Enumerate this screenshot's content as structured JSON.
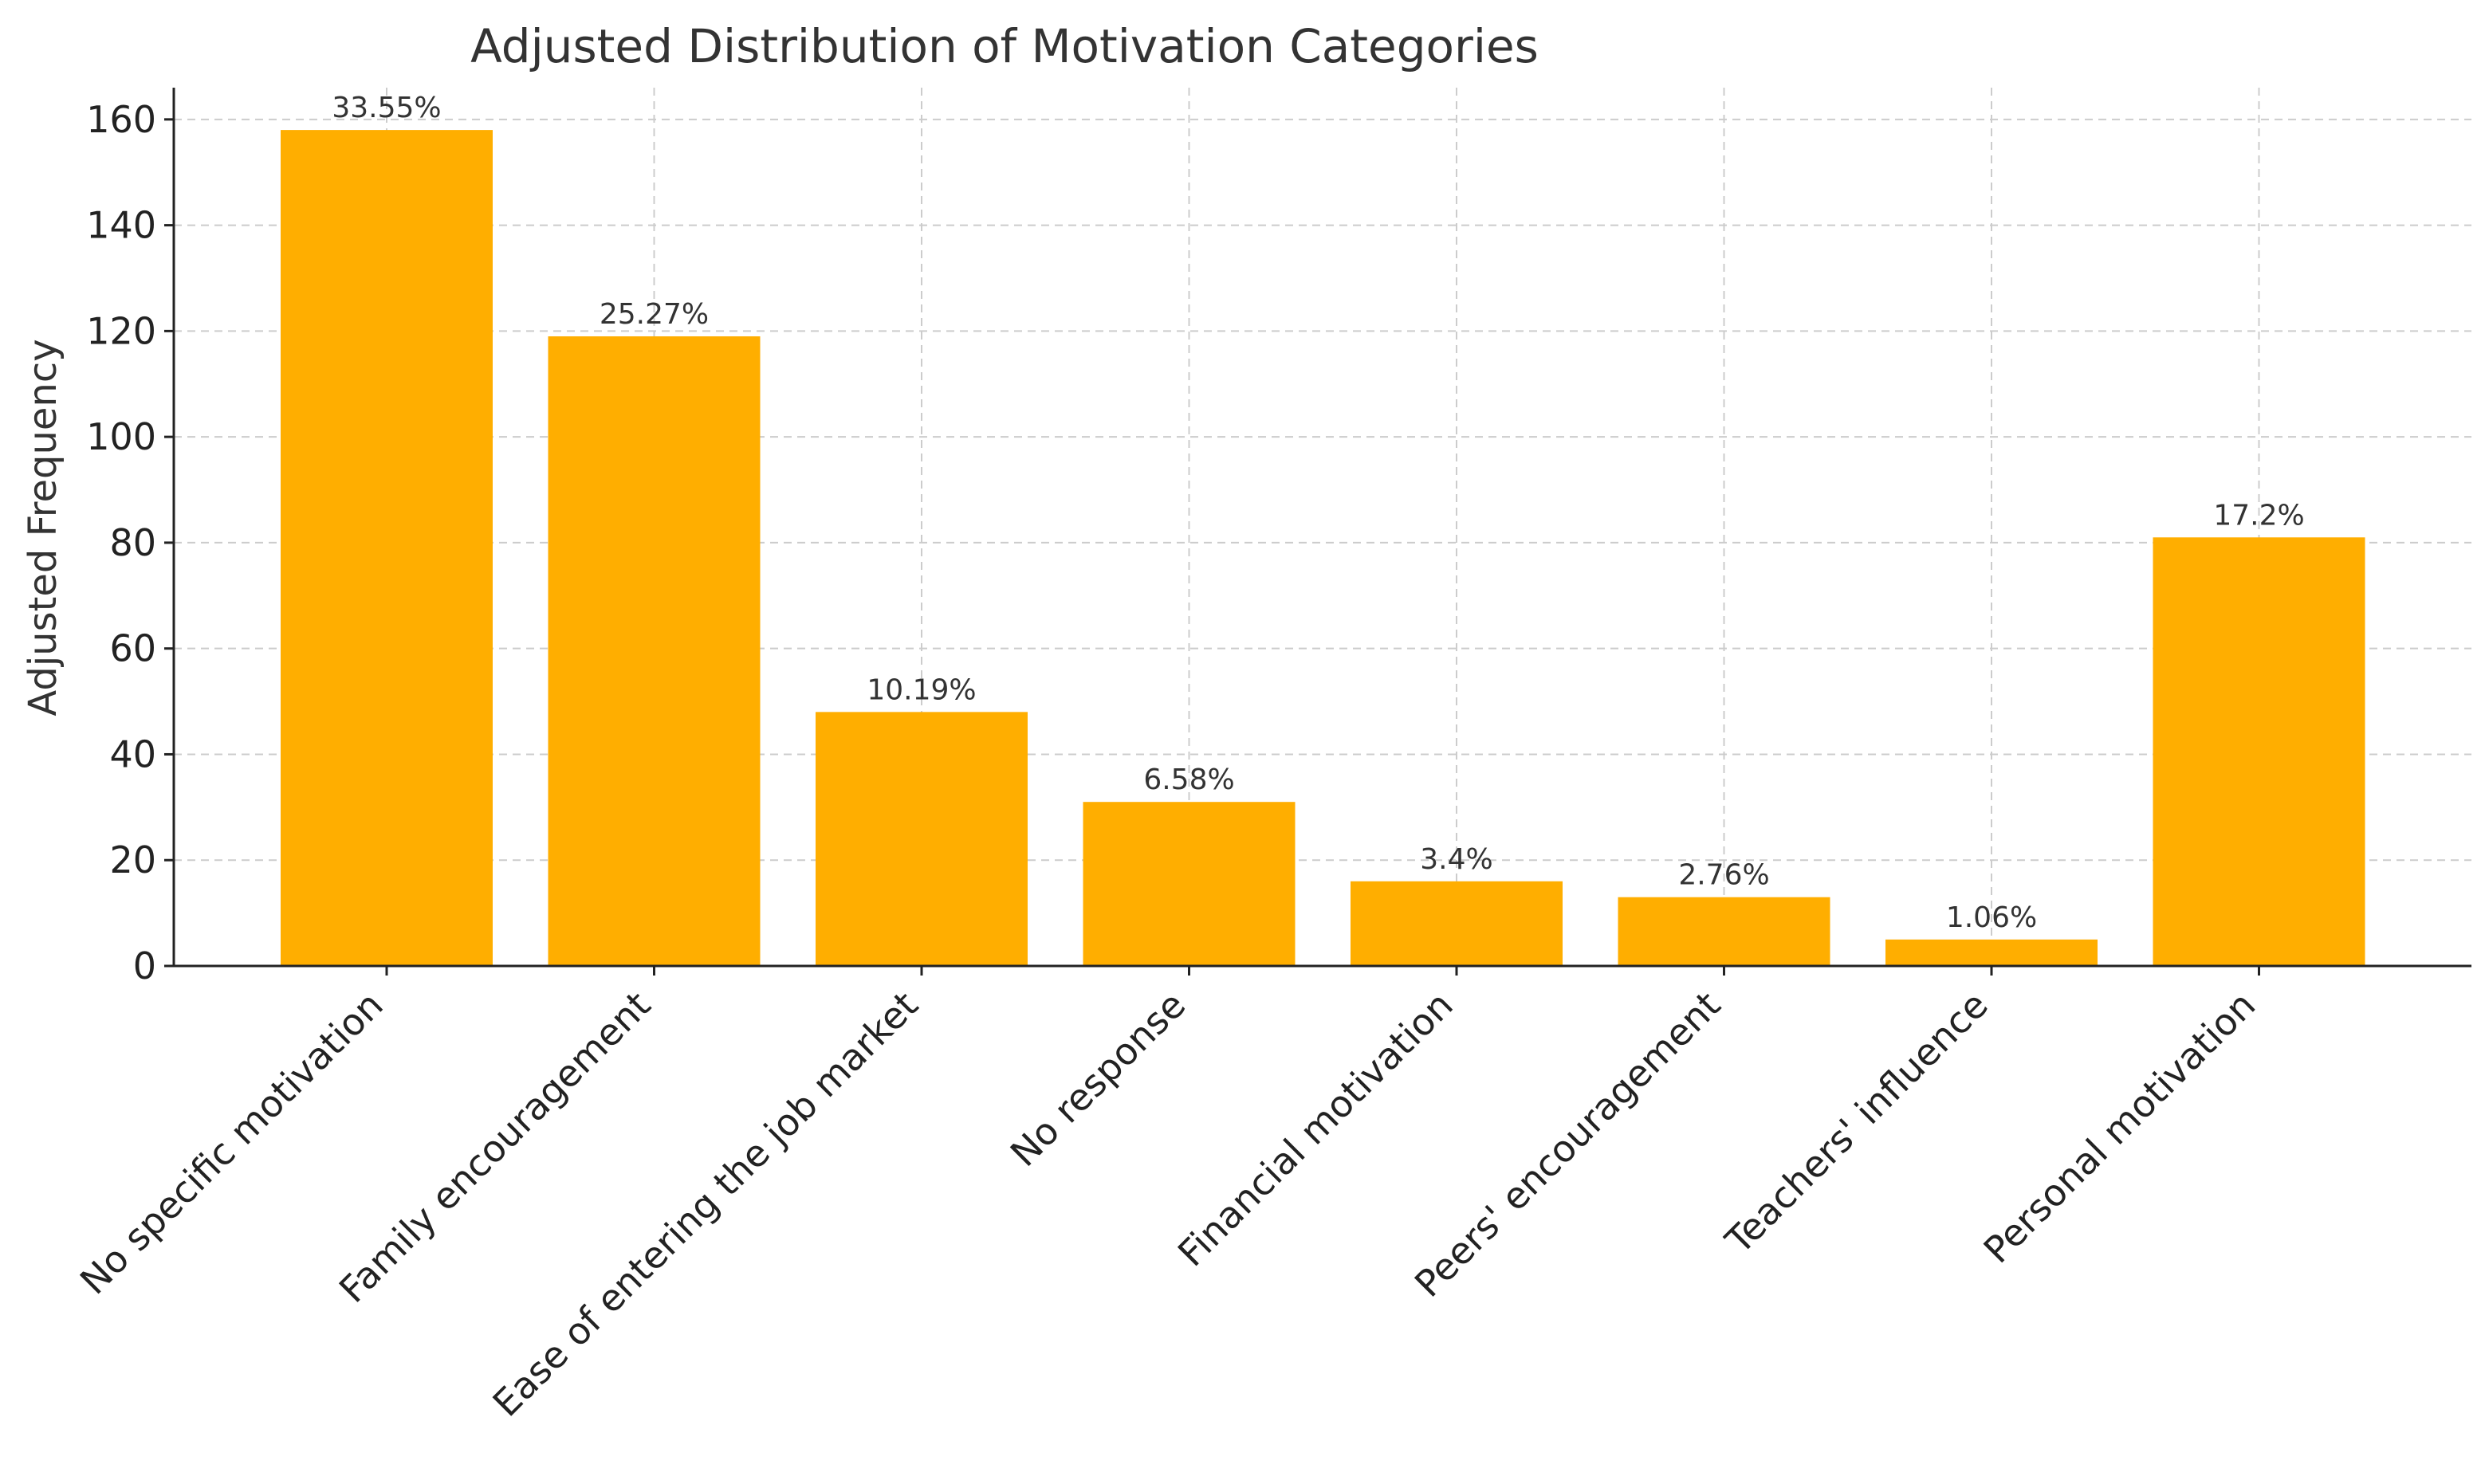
{
  "chart_data": {
    "type": "bar",
    "title": "Adjusted Distribution of Motivation Categories",
    "xlabel": "",
    "ylabel": "Adjusted Frequency",
    "ylim": [
      0,
      166
    ],
    "yticks": [
      0,
      20,
      40,
      60,
      80,
      100,
      120,
      140,
      160
    ],
    "grid": true,
    "bar_color": "#FFAE00",
    "categories": [
      "No specific motivation",
      "Family encouragement",
      "Ease of entering the job market",
      "No response",
      "Financial motivation",
      "Peers' encouragement",
      "Teachers' influence",
      "Personal motivation"
    ],
    "values": [
      158,
      119,
      48,
      31,
      16,
      13,
      5,
      81
    ],
    "data_labels": [
      "33.55%",
      "25.27%",
      "10.19%",
      "6.58%",
      "3.4%",
      "2.76%",
      "1.06%",
      "17.2%"
    ]
  }
}
